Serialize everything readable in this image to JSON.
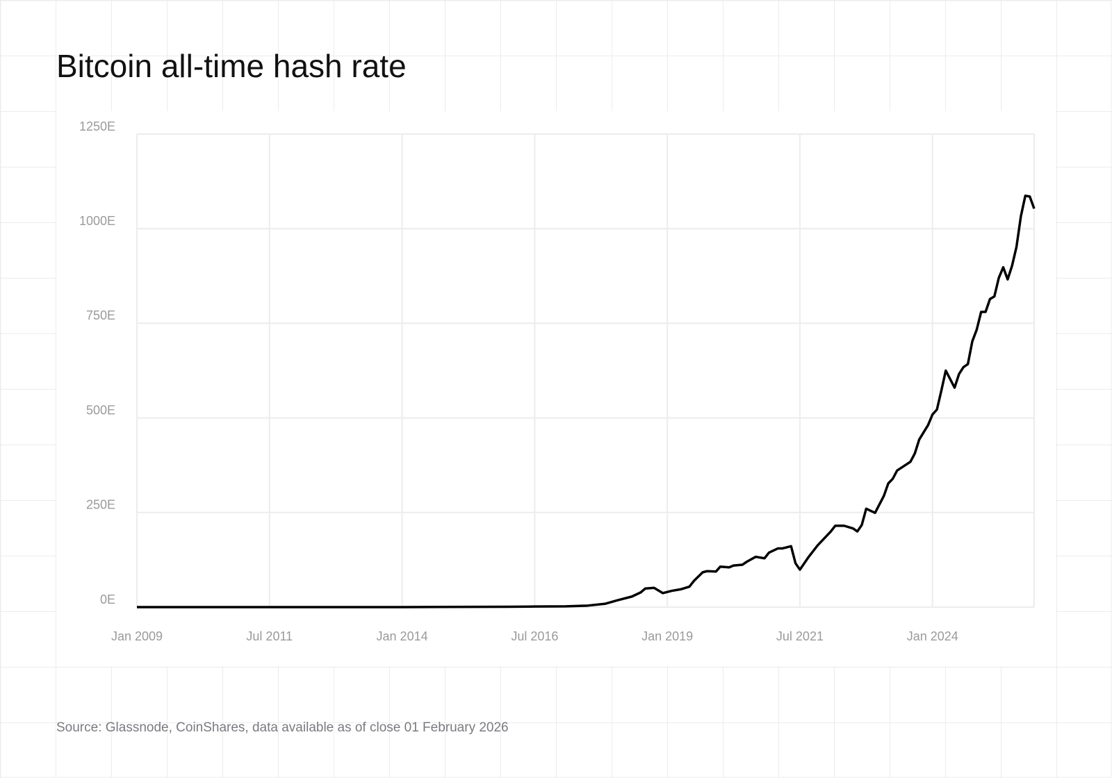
{
  "chart_data": {
    "type": "line",
    "title": "Bitcoin all-time hash rate",
    "source": "Source: Glassnode, CoinShares, data available as of close 01 February 2026",
    "x": [
      "2009-01",
      "2012-01",
      "2014-01",
      "2016-01",
      "2016-07",
      "2017-02",
      "2017-07",
      "2017-11",
      "2018-02",
      "2018-05",
      "2018-07",
      "2018-08",
      "2018-10",
      "2018-12",
      "2019-02",
      "2019-04",
      "2019-06",
      "2019-07",
      "2019-09",
      "2019-10",
      "2019-12",
      "2020-01",
      "2020-03",
      "2020-04",
      "2020-06",
      "2020-07",
      "2020-09",
      "2020-11",
      "2020-12",
      "2021-02",
      "2021-03",
      "2021-05",
      "2021-06",
      "2021-07",
      "2021-09",
      "2021-11",
      "2022-02",
      "2022-03",
      "2022-05",
      "2022-07",
      "2022-08",
      "2022-09",
      "2022-10",
      "2022-12",
      "2023-02",
      "2023-03",
      "2023-04",
      "2023-05",
      "2023-08",
      "2023-09",
      "2023-10",
      "2023-12",
      "2024-01",
      "2024-02",
      "2024-03",
      "2024-04",
      "2024-06",
      "2024-07",
      "2024-08",
      "2024-09",
      "2024-10",
      "2024-11",
      "2024-12",
      "2025-01",
      "2025-02",
      "2025-03",
      "2025-04",
      "2025-05",
      "2025-06",
      "2025-07",
      "2025-08",
      "2025-09",
      "2025-10",
      "2025-11",
      "2025-12"
    ],
    "series": [
      {
        "name": "Hash rate",
        "color": "#000000",
        "values": [
          0,
          0,
          0.1,
          1,
          1.5,
          2,
          4,
          9,
          19,
          28,
          39,
          49,
          51,
          37,
          43,
          47,
          54,
          69,
          92,
          95,
          94,
          107,
          105,
          110,
          112,
          120,
          133,
          129,
          144,
          155,
          155,
          161,
          116,
          99,
          133,
          163,
          200,
          215,
          215,
          208,
          200,
          217,
          260,
          249,
          294,
          327,
          339,
          361,
          384,
          406,
          443,
          481,
          509,
          522,
          572,
          625,
          580,
          616,
          634,
          642,
          702,
          733,
          780,
          780,
          814,
          821,
          870,
          898,
          866,
          902,
          952,
          1033,
          1087,
          1085,
          1053
        ]
      }
    ],
    "xlim": [
      "2009-01",
      "2025-12"
    ],
    "xticks": [
      {
        "value": "2009-01",
        "label": "Jan 2009"
      },
      {
        "value": "2011-07",
        "label": "Jul 2011"
      },
      {
        "value": "2014-01",
        "label": "Jan 2014"
      },
      {
        "value": "2016-07",
        "label": "Jul 2016"
      },
      {
        "value": "2019-01",
        "label": "Jan 2019"
      },
      {
        "value": "2021-07",
        "label": "Jul 2021"
      },
      {
        "value": "2024-01",
        "label": "Jan 2024"
      }
    ],
    "ylim": [
      0,
      1250
    ],
    "yticks": [
      {
        "value": 0,
        "label": "0E"
      },
      {
        "value": 250,
        "label": "250E"
      },
      {
        "value": 500,
        "label": "500E"
      },
      {
        "value": 750,
        "label": "750E"
      },
      {
        "value": 1000,
        "label": "1000E"
      },
      {
        "value": 1250,
        "label": "1250E"
      }
    ],
    "grid": true
  }
}
